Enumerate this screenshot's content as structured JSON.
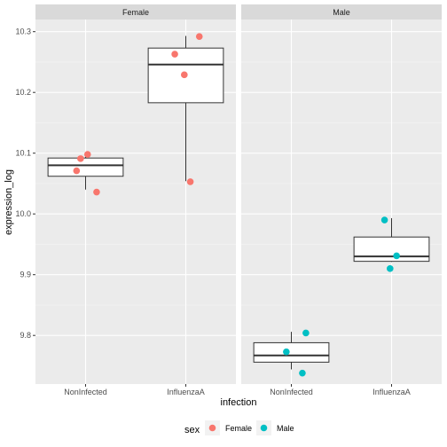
{
  "chart_data": {
    "type": "boxplot",
    "xlabel": "infection",
    "ylabel": "expression_log",
    "ylim": [
      9.72,
      10.32
    ],
    "yticks": [
      9.8,
      9.9,
      10.0,
      10.1,
      10.2,
      10.3
    ],
    "ytick_labels": [
      "9.8",
      "9.9",
      "10.0",
      "10.1",
      "10.2",
      "10.3"
    ],
    "categories": [
      "NonInfected",
      "InfluenzaA"
    ],
    "facets": [
      {
        "label": "Female",
        "color": "#F8766D",
        "boxes": [
          {
            "category": "NonInfected",
            "whisker_low": 10.04,
            "q1": 10.062,
            "median": 10.08,
            "q3": 10.092,
            "whisker_high": 10.099
          },
          {
            "category": "InfluenzaA",
            "whisker_low": 10.054,
            "q1": 10.183,
            "median": 10.246,
            "q3": 10.273,
            "whisker_high": 10.293
          }
        ],
        "points": [
          {
            "category": "NonInfected",
            "jitter": -0.18,
            "y": 10.071
          },
          {
            "category": "NonInfected",
            "jitter": -0.1,
            "y": 10.091
          },
          {
            "category": "NonInfected",
            "jitter": 0.04,
            "y": 10.098
          },
          {
            "category": "NonInfected",
            "jitter": 0.22,
            "y": 10.036
          },
          {
            "category": "InfluenzaA",
            "jitter": -0.22,
            "y": 10.263
          },
          {
            "category": "InfluenzaA",
            "jitter": -0.03,
            "y": 10.229
          },
          {
            "category": "InfluenzaA",
            "jitter": 0.09,
            "y": 10.053
          },
          {
            "category": "InfluenzaA",
            "jitter": 0.27,
            "y": 10.292
          }
        ]
      },
      {
        "label": "Male",
        "color": "#00BFC4",
        "boxes": [
          {
            "category": "NonInfected",
            "whisker_low": 9.744,
            "q1": 9.756,
            "median": 9.767,
            "q3": 9.788,
            "whisker_high": 9.806
          },
          {
            "category": "InfluenzaA",
            "whisker_low": 9.921,
            "q1": 9.922,
            "median": 9.93,
            "q3": 9.962,
            "whisker_high": 9.993
          }
        ],
        "points": [
          {
            "category": "NonInfected",
            "jitter": -0.1,
            "y": 9.773
          },
          {
            "category": "NonInfected",
            "jitter": 0.22,
            "y": 9.738
          },
          {
            "category": "NonInfected",
            "jitter": 0.29,
            "y": 9.804
          },
          {
            "category": "InfluenzaA",
            "jitter": -0.14,
            "y": 9.99
          },
          {
            "category": "InfluenzaA",
            "jitter": -0.03,
            "y": 9.91
          },
          {
            "category": "InfluenzaA",
            "jitter": 0.1,
            "y": 9.931
          }
        ]
      }
    ],
    "legend": {
      "title": "sex",
      "position": "bottom",
      "entries": [
        {
          "label": "Female",
          "color": "#F8766D"
        },
        {
          "label": "Male",
          "color": "#00BFC4"
        }
      ]
    },
    "grid": true
  }
}
